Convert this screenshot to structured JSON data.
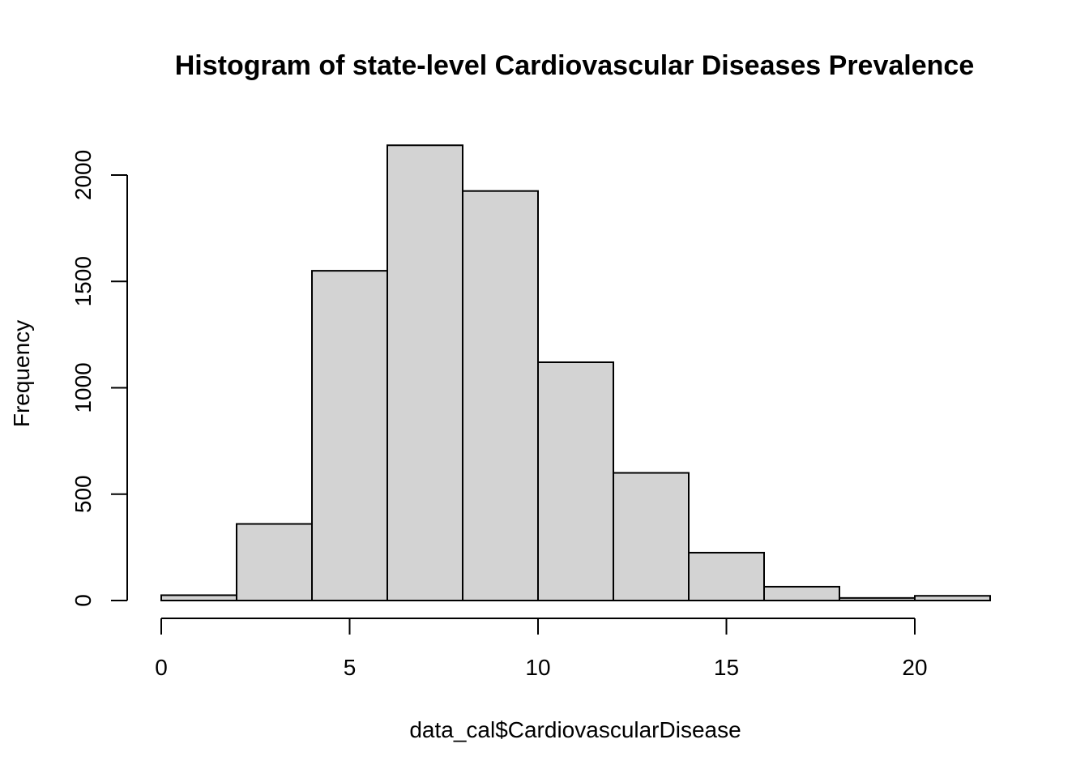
{
  "chart_data": {
    "type": "bar",
    "title": "Histogram of state-level Cardiovascular Diseases Prevalence",
    "xlabel": "data_cal$CardiovascularDisease",
    "ylabel": "Frequency",
    "bin_edges": [
      0,
      2,
      4,
      6,
      8,
      10,
      12,
      14,
      16,
      18,
      20,
      22
    ],
    "values": [
      25,
      360,
      1550,
      2140,
      1925,
      1120,
      600,
      225,
      65,
      12,
      22
    ],
    "xlim": [
      0,
      22
    ],
    "ylim": [
      0,
      2140
    ],
    "x_ticks": [
      0,
      5,
      10,
      15,
      20
    ],
    "y_ticks": [
      0,
      500,
      1000,
      1500,
      2000
    ],
    "x_tick_labels": [
      "0",
      "5",
      "10",
      "15",
      "20"
    ],
    "y_tick_labels": [
      "0",
      "500",
      "1000",
      "1500",
      "2000"
    ],
    "grid": false,
    "legend": "none",
    "colors": {
      "bar_fill": "#d3d3d3",
      "bar_stroke": "#000000",
      "background": "#ffffff"
    }
  }
}
